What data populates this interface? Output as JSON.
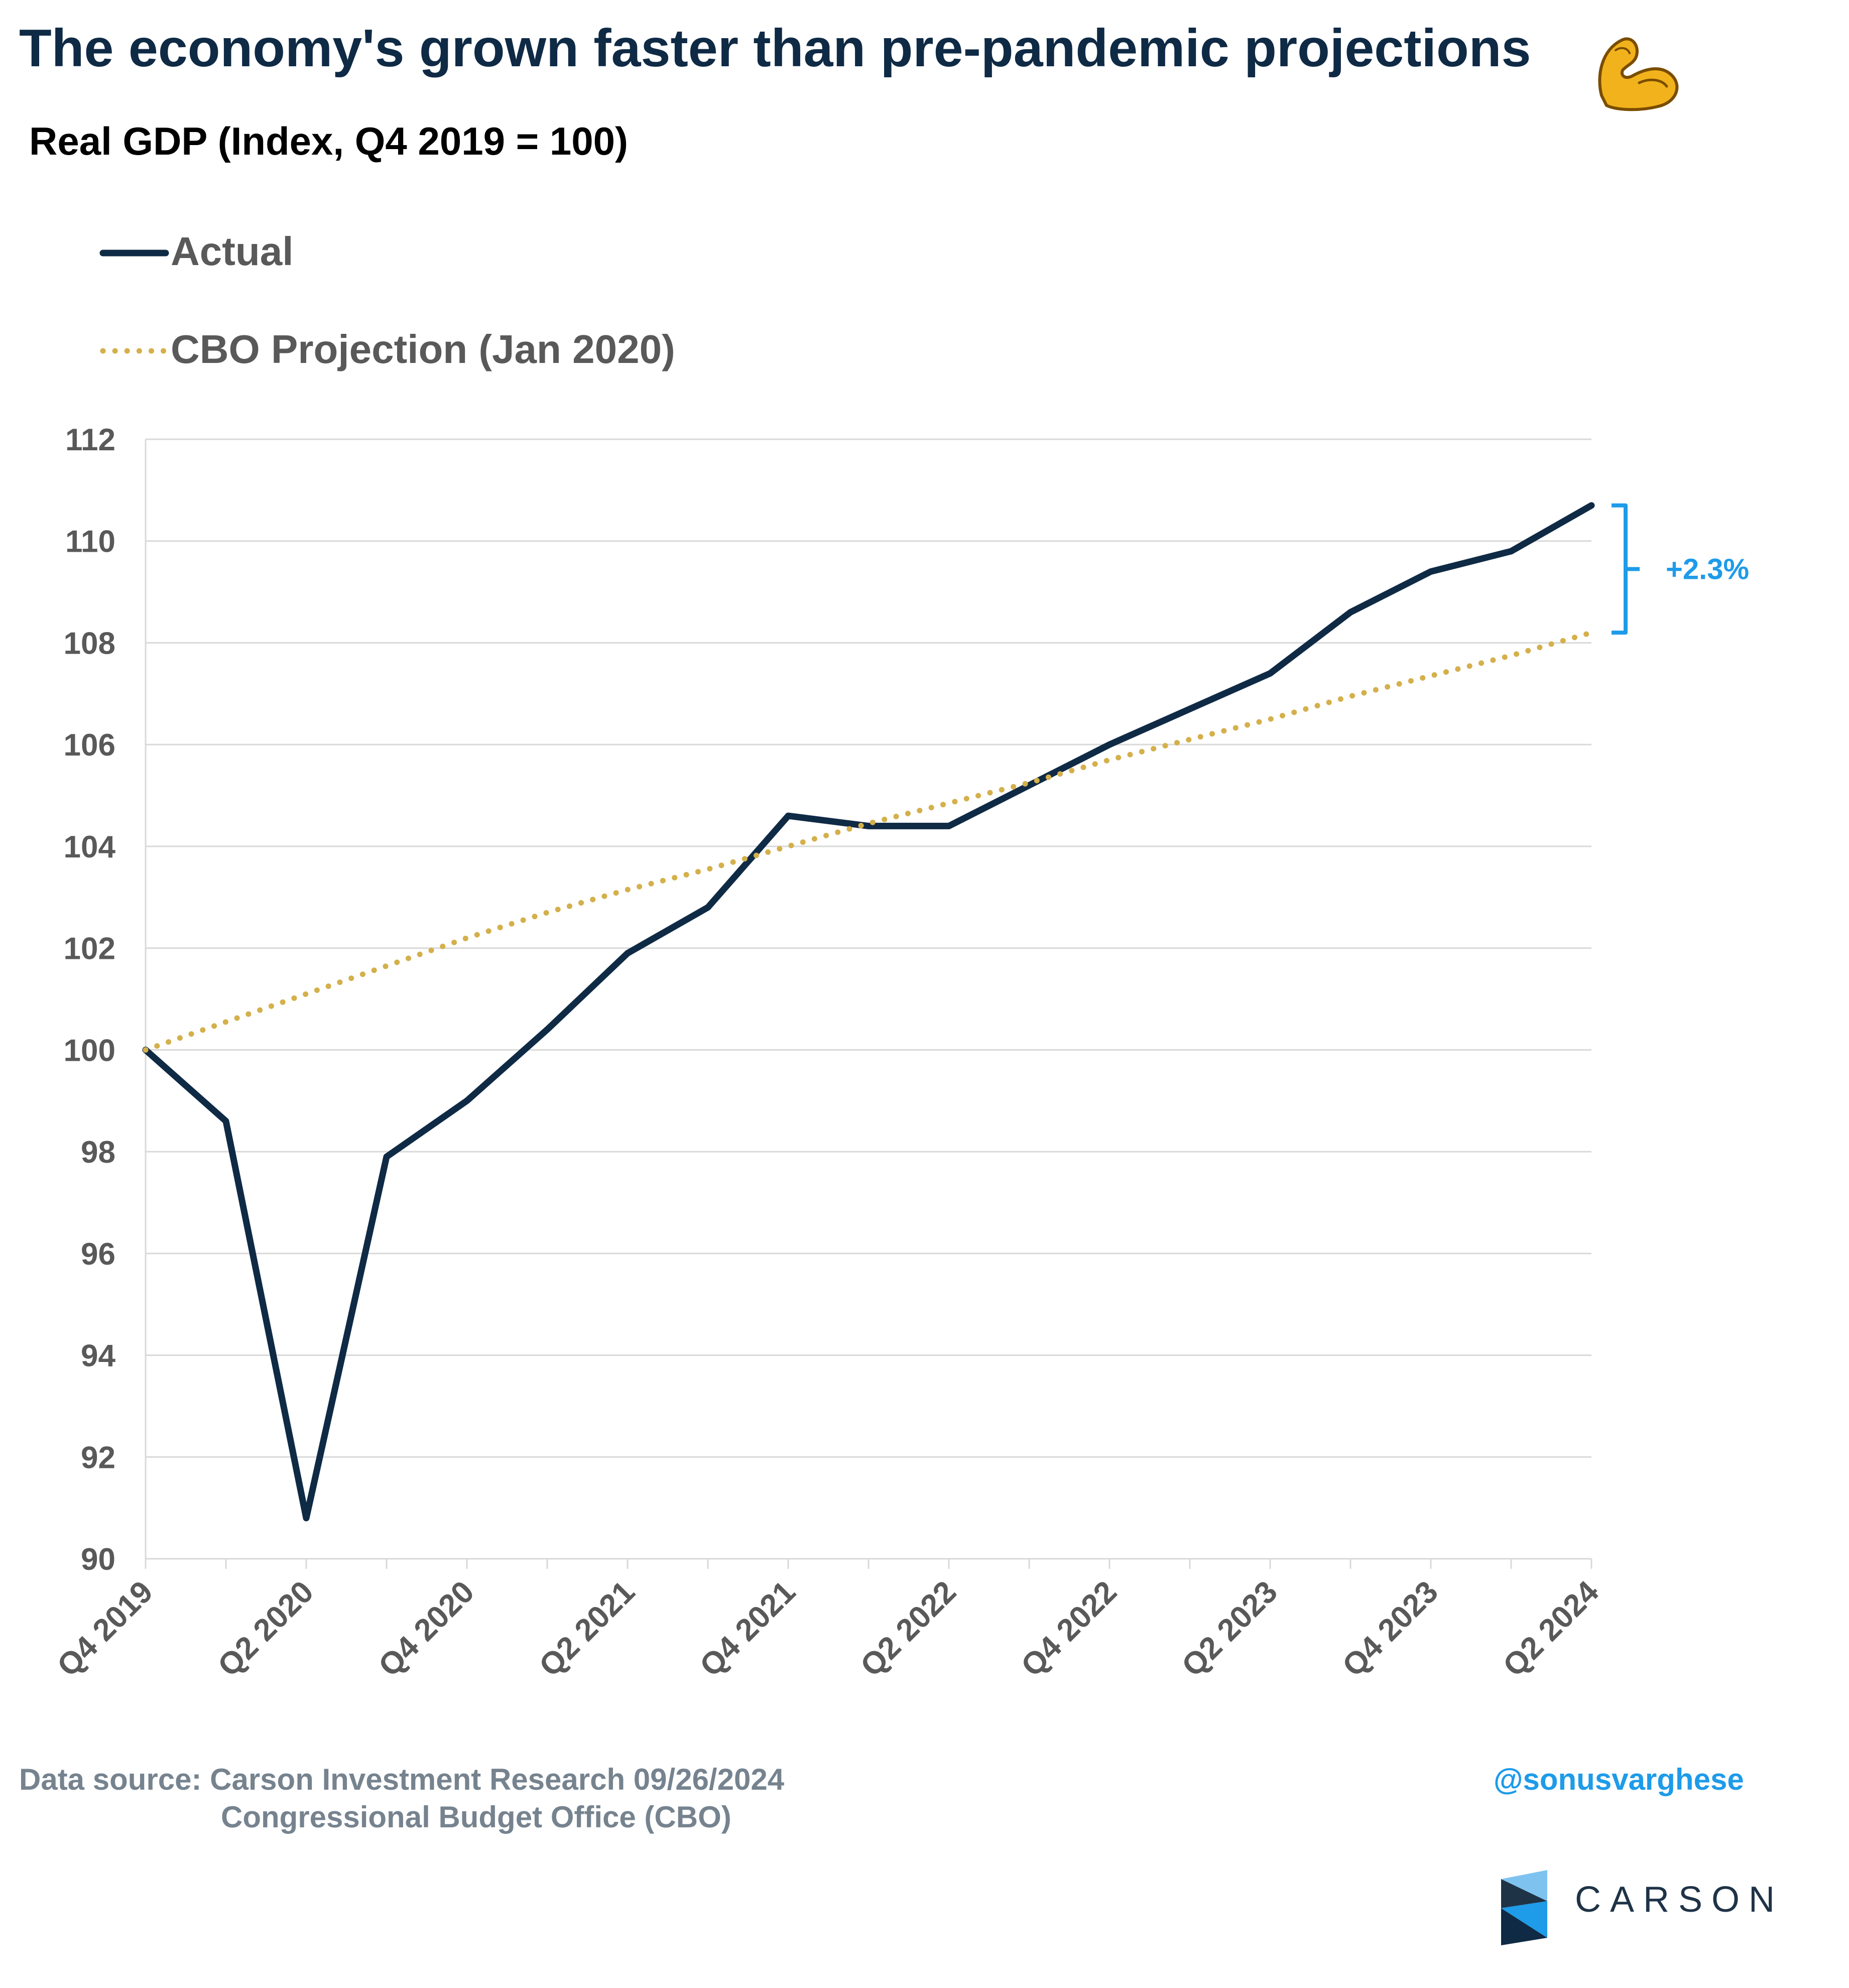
{
  "header": {
    "title": "The economy's grown faster than pre-pandemic projections",
    "title_icon": "flexed-biceps-icon",
    "subtitle": "Real GDP (Index, Q4 2019 = 100)"
  },
  "footer": {
    "source_line1": "Data source: Carson Investment Research   09/26/2024",
    "source_line2": "Congressional Budget Office (CBO)",
    "handle": "@sonusvarghese",
    "brand": "CARSON",
    "brand_icon": "carson-logo-icon"
  },
  "chart_data": {
    "type": "line",
    "title": "Real GDP (Index, Q4 2019 = 100)",
    "xlabel": "",
    "ylabel": "",
    "ylim": [
      90,
      112
    ],
    "ytick_step": 2,
    "grid": true,
    "legend_position": "top-left",
    "x": [
      "Q4 2019",
      "Q1 2020",
      "Q2 2020",
      "Q3 2020",
      "Q4 2020",
      "Q1 2021",
      "Q2 2021",
      "Q3 2021",
      "Q4 2021",
      "Q1 2022",
      "Q2 2022",
      "Q3 2022",
      "Q4 2022",
      "Q1 2023",
      "Q2 2023",
      "Q3 2023",
      "Q4 2023",
      "Q1 2024",
      "Q2 2024"
    ],
    "x_tick_labels": [
      "Q4 2019",
      "Q2 2020",
      "Q4 2020",
      "Q2 2021",
      "Q4 2021",
      "Q2 2022",
      "Q4 2022",
      "Q2 2023",
      "Q4 2023",
      "Q2 2024"
    ],
    "series": [
      {
        "name": "Actual",
        "color": "#0f2a45",
        "style": "solid",
        "values": [
          100,
          98.6,
          90.8,
          97.9,
          99.0,
          100.4,
          101.9,
          102.8,
          104.6,
          104.4,
          104.4,
          105.2,
          106.0,
          106.7,
          107.4,
          108.6,
          109.4,
          109.8,
          110.7
        ]
      },
      {
        "name": "CBO Projection (Jan 2020)",
        "color": "#d4b04c",
        "style": "dotted",
        "values": [
          100,
          100.55,
          101.1,
          101.65,
          102.2,
          102.7,
          103.15,
          103.55,
          104.0,
          104.45,
          104.85,
          105.25,
          105.7,
          106.1,
          106.5,
          106.95,
          107.35,
          107.75,
          108.2
        ]
      }
    ],
    "annotations": [
      {
        "text": "+2.3%",
        "color": "#1e9be9"
      }
    ]
  }
}
